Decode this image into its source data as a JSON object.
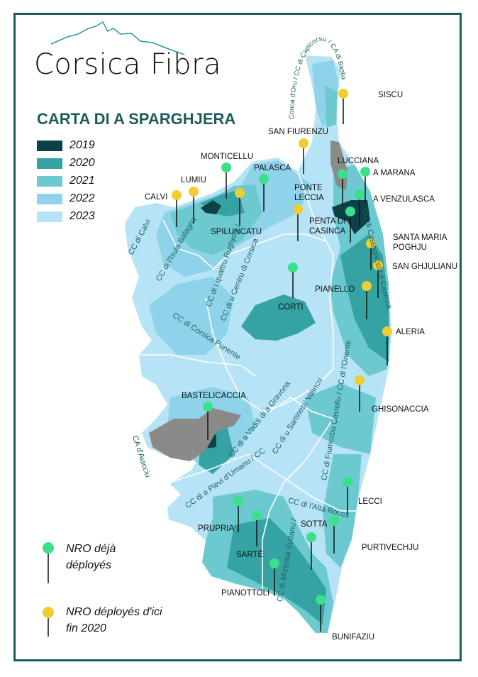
{
  "logo": {
    "text": "Corsica Fibra",
    "color": "#2a9aa0"
  },
  "title": "CARTA DI A SPARGHJERA",
  "legend": [
    {
      "label": "2019",
      "color": "#0d4148"
    },
    {
      "label": "2020",
      "color": "#35a3a4"
    },
    {
      "label": "2021",
      "color": "#6cc9d0"
    },
    {
      "label": "2022",
      "color": "#8fd3ea"
    },
    {
      "label": "2023",
      "color": "#b7e3f6"
    }
  ],
  "other_area_color": "#8a8a88",
  "pin_colors": {
    "deployed": "#3be08a",
    "planned": "#efcc30"
  },
  "places": [
    {
      "name": "SISCU",
      "status": "planned"
    },
    {
      "name": "SAN FIURENZU",
      "status": "planned"
    },
    {
      "name": "LUCCIANA",
      "status": "deployed"
    },
    {
      "name": "A MARANA",
      "status": "deployed"
    },
    {
      "name": "A VENZULASCA",
      "status": "deployed"
    },
    {
      "name": "MONTICELLU",
      "status": "deployed"
    },
    {
      "name": "PALASCA",
      "status": "deployed"
    },
    {
      "name": "LUMIU",
      "status": "planned"
    },
    {
      "name": "CALVI",
      "status": "planned"
    },
    {
      "name": "SPILUNCATU",
      "status": "planned"
    },
    {
      "name": "PONTE\nLECCIA",
      "status": "planned"
    },
    {
      "name": "PENTA DI\nCASINCA",
      "status": "deployed"
    },
    {
      "name": "SANTA MARIA\nPOGHJU",
      "status": "planned"
    },
    {
      "name": "SAN GHJULIANU",
      "status": "planned"
    },
    {
      "name": "PIANELLO",
      "status": "planned"
    },
    {
      "name": "CORTI",
      "status": "deployed"
    },
    {
      "name": "ALERIA",
      "status": "planned"
    },
    {
      "name": "GHISONACCIA",
      "status": "planned"
    },
    {
      "name": "BASTELICACCIA",
      "status": "deployed"
    },
    {
      "name": "LECCI",
      "status": "deployed"
    },
    {
      "name": "PRUPRIA",
      "status": "deployed"
    },
    {
      "name": "SARTÈ",
      "status": "deployed"
    },
    {
      "name": "SOTTA",
      "status": "deployed"
    },
    {
      "name": "PURTIVECHJU",
      "status": "deployed"
    },
    {
      "name": "PIANOTTOLI",
      "status": "deployed"
    },
    {
      "name": "BUNIFAZIU",
      "status": "deployed"
    }
  ],
  "regions": [
    "Conca d'Oru / CC di Capicorsu / CA di Bastia",
    "CC di Castagniccia è Casinca",
    "CC di Calvi",
    "CC di l'Isula-Balagna",
    "CC di i quattru Rughjoni /",
    "CC di u Centru di Corsica",
    "CC di Corsica Punente",
    "CC di Fiumorbu Castellu / CC di l'Oriente",
    "CC di a Vaddi di a Gravona",
    "CC di u Sartinesi/ Valincu",
    "CC di a Pievi d'Urnanu / CC",
    "CC di Mizioma Suttanu /",
    "CC di l'Alta Rocca",
    "CA d'Aiacciu"
  ],
  "nro_legend": {
    "deployed": [
      "NRO déjà",
      "déployés"
    ],
    "planned": [
      "NRO déployés d'ici",
      "fin 2020"
    ]
  }
}
